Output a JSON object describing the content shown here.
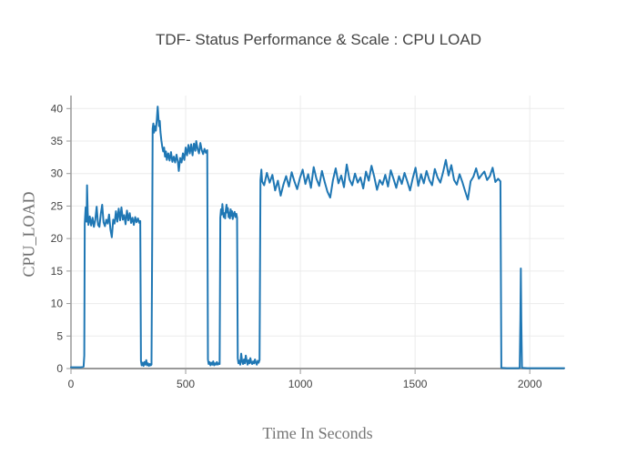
{
  "chart_data": {
    "type": "line",
    "title": "TDF- Status Performance & Scale : CPU LOAD",
    "xlabel": "Time In Seconds",
    "ylabel": "CPU_LOAD",
    "xlim": [
      0,
      2150
    ],
    "ylim": [
      0,
      42
    ],
    "xticks": [
      0,
      500,
      1000,
      1500,
      2000
    ],
    "yticks": [
      0,
      5,
      10,
      15,
      20,
      25,
      30,
      35,
      40
    ],
    "grid": true,
    "legend": false,
    "colors": {
      "line": "#1f77b4",
      "grid": "#ebebeb",
      "axis": "#999999",
      "tick_label": "#444444",
      "title": "#444444"
    },
    "series": [
      {
        "name": "CPU_LOAD",
        "points": [
          [
            0,
            0.2
          ],
          [
            15,
            0.2
          ],
          [
            30,
            0.2
          ],
          [
            45,
            0.2
          ],
          [
            55,
            0.3
          ],
          [
            58,
            2.0
          ],
          [
            60,
            22.3
          ],
          [
            64,
            24.8
          ],
          [
            68,
            22.6
          ],
          [
            70,
            28.2
          ],
          [
            73,
            24.0
          ],
          [
            76,
            22.1
          ],
          [
            82,
            23.4
          ],
          [
            88,
            22.0
          ],
          [
            94,
            23.2
          ],
          [
            100,
            21.8
          ],
          [
            106,
            22.9
          ],
          [
            112,
            24.9
          ],
          [
            118,
            22.1
          ],
          [
            124,
            21.8
          ],
          [
            130,
            23.8
          ],
          [
            136,
            25.2
          ],
          [
            142,
            22.5
          ],
          [
            148,
            21.9
          ],
          [
            154,
            22.9
          ],
          [
            160,
            22.3
          ],
          [
            166,
            23.7
          ],
          [
            172,
            21.4
          ],
          [
            178,
            20.2
          ],
          [
            184,
            22.9
          ],
          [
            190,
            22.3
          ],
          [
            196,
            24.2
          ],
          [
            202,
            22.6
          ],
          [
            208,
            24.6
          ],
          [
            214,
            22.8
          ],
          [
            220,
            24.8
          ],
          [
            226,
            22.9
          ],
          [
            232,
            23.6
          ],
          [
            238,
            22.2
          ],
          [
            244,
            24.3
          ],
          [
            250,
            22.8
          ],
          [
            256,
            23.9
          ],
          [
            262,
            22.4
          ],
          [
            268,
            23.2
          ],
          [
            274,
            22.1
          ],
          [
            280,
            23.3
          ],
          [
            286,
            22.5
          ],
          [
            292,
            23.1
          ],
          [
            298,
            22.4
          ],
          [
            302,
            22.7
          ],
          [
            305,
            1.2
          ],
          [
            308,
            0.5
          ],
          [
            312,
            0.9
          ],
          [
            316,
            0.4
          ],
          [
            320,
            1.0
          ],
          [
            324,
            0.6
          ],
          [
            328,
            1.3
          ],
          [
            332,
            0.5
          ],
          [
            336,
            0.8
          ],
          [
            340,
            0.4
          ],
          [
            344,
            0.7
          ],
          [
            348,
            0.5
          ],
          [
            351,
            0.6
          ],
          [
            354,
            20.0
          ],
          [
            356,
            36.9
          ],
          [
            359,
            37.7
          ],
          [
            362,
            36.3
          ],
          [
            366,
            37.3
          ],
          [
            370,
            36.6
          ],
          [
            374,
            38.2
          ],
          [
            378,
            40.3
          ],
          [
            381,
            38.7
          ],
          [
            384,
            37.3
          ],
          [
            387,
            38.1
          ],
          [
            390,
            36.4
          ],
          [
            394,
            35.1
          ],
          [
            398,
            34.1
          ],
          [
            402,
            33.4
          ],
          [
            406,
            34.0
          ],
          [
            410,
            32.6
          ],
          [
            414,
            33.4
          ],
          [
            418,
            32.1
          ],
          [
            424,
            33.1
          ],
          [
            430,
            32.0
          ],
          [
            436,
            33.3
          ],
          [
            442,
            31.8
          ],
          [
            448,
            32.6
          ],
          [
            454,
            31.7
          ],
          [
            460,
            32.9
          ],
          [
            466,
            31.8
          ],
          [
            470,
            30.4
          ],
          [
            476,
            32.4
          ],
          [
            482,
            31.7
          ],
          [
            488,
            33.1
          ],
          [
            494,
            32.1
          ],
          [
            500,
            34.0
          ],
          [
            506,
            32.8
          ],
          [
            512,
            34.4
          ],
          [
            518,
            33.1
          ],
          [
            524,
            34.5
          ],
          [
            530,
            32.8
          ],
          [
            536,
            34.6
          ],
          [
            542,
            33.5
          ],
          [
            546,
            35.0
          ],
          [
            552,
            33.8
          ],
          [
            558,
            33.1
          ],
          [
            564,
            34.7
          ],
          [
            570,
            33.6
          ],
          [
            576,
            33.0
          ],
          [
            582,
            33.8
          ],
          [
            588,
            33.2
          ],
          [
            594,
            33.6
          ],
          [
            597,
            1.4
          ],
          [
            600,
            0.7
          ],
          [
            604,
            1.0
          ],
          [
            608,
            0.5
          ],
          [
            612,
            0.9
          ],
          [
            616,
            0.6
          ],
          [
            620,
            1.1
          ],
          [
            624,
            0.5
          ],
          [
            628,
            0.8
          ],
          [
            632,
            0.6
          ],
          [
            636,
            1.0
          ],
          [
            640,
            0.6
          ],
          [
            644,
            0.8
          ],
          [
            648,
            0.7
          ],
          [
            651,
            23.2
          ],
          [
            654,
            24.5
          ],
          [
            657,
            23.7
          ],
          [
            660,
            25.3
          ],
          [
            663,
            24.1
          ],
          [
            666,
            23.3
          ],
          [
            669,
            23.9
          ],
          [
            672,
            23.1
          ],
          [
            675,
            24.4
          ],
          [
            678,
            25.2
          ],
          [
            681,
            24.0
          ],
          [
            684,
            24.7
          ],
          [
            687,
            23.3
          ],
          [
            690,
            24.0
          ],
          [
            693,
            23.1
          ],
          [
            696,
            24.5
          ],
          [
            699,
            23.5
          ],
          [
            702,
            24.2
          ],
          [
            705,
            23.0
          ],
          [
            709,
            23.7
          ],
          [
            713,
            24.1
          ],
          [
            717,
            23.3
          ],
          [
            721,
            23.8
          ],
          [
            724,
            23.2
          ],
          [
            727,
            1.6
          ],
          [
            730,
            0.8
          ],
          [
            734,
            1.2
          ],
          [
            738,
            0.6
          ],
          [
            742,
            2.3
          ],
          [
            746,
            1.1
          ],
          [
            750,
            0.7
          ],
          [
            754,
            1.4
          ],
          [
            758,
            0.8
          ],
          [
            762,
            2.0
          ],
          [
            766,
            1.2
          ],
          [
            770,
            0.6
          ],
          [
            774,
            1.3
          ],
          [
            778,
            0.8
          ],
          [
            782,
            1.6
          ],
          [
            786,
            0.9
          ],
          [
            790,
            0.7
          ],
          [
            794,
            1.1
          ],
          [
            798,
            0.8
          ],
          [
            802,
            1.4
          ],
          [
            806,
            0.9
          ],
          [
            810,
            0.6
          ],
          [
            814,
            1.2
          ],
          [
            818,
            0.9
          ],
          [
            822,
            1.3
          ],
          [
            826,
            29.0
          ],
          [
            830,
            30.6
          ],
          [
            833,
            28.8
          ],
          [
            842,
            28.2
          ],
          [
            854,
            30.1
          ],
          [
            866,
            28.6
          ],
          [
            878,
            29.8
          ],
          [
            890,
            27.4
          ],
          [
            902,
            28.9
          ],
          [
            914,
            26.6
          ],
          [
            926,
            28.3
          ],
          [
            938,
            29.6
          ],
          [
            950,
            28.0
          ],
          [
            962,
            30.2
          ],
          [
            974,
            28.8
          ],
          [
            986,
            27.6
          ],
          [
            998,
            29.3
          ],
          [
            1010,
            30.6
          ],
          [
            1022,
            28.4
          ],
          [
            1034,
            29.9
          ],
          [
            1046,
            27.8
          ],
          [
            1058,
            31.0
          ],
          [
            1070,
            29.2
          ],
          [
            1082,
            28.1
          ],
          [
            1094,
            30.4
          ],
          [
            1106,
            28.7
          ],
          [
            1118,
            27.2
          ],
          [
            1130,
            26.3
          ],
          [
            1142,
            29.0
          ],
          [
            1154,
            30.8
          ],
          [
            1166,
            28.5
          ],
          [
            1178,
            29.7
          ],
          [
            1190,
            27.9
          ],
          [
            1202,
            31.4
          ],
          [
            1214,
            29.1
          ],
          [
            1226,
            28.2
          ],
          [
            1238,
            30.0
          ],
          [
            1250,
            28.6
          ],
          [
            1262,
            29.4
          ],
          [
            1274,
            27.7
          ],
          [
            1286,
            30.3
          ],
          [
            1298,
            28.9
          ],
          [
            1310,
            31.2
          ],
          [
            1322,
            29.5
          ],
          [
            1334,
            27.5
          ],
          [
            1346,
            29.0
          ],
          [
            1358,
            28.3
          ],
          [
            1370,
            29.8
          ],
          [
            1382,
            28.0
          ],
          [
            1394,
            30.5
          ],
          [
            1406,
            29.2
          ],
          [
            1418,
            27.8
          ],
          [
            1430,
            29.6
          ],
          [
            1442,
            28.4
          ],
          [
            1454,
            30.1
          ],
          [
            1466,
            28.8
          ],
          [
            1478,
            27.4
          ],
          [
            1490,
            29.3
          ],
          [
            1502,
            30.9
          ],
          [
            1514,
            28.1
          ],
          [
            1526,
            29.9
          ],
          [
            1538,
            28.5
          ],
          [
            1550,
            30.4
          ],
          [
            1562,
            29.0
          ],
          [
            1574,
            28.2
          ],
          [
            1586,
            30.7
          ],
          [
            1598,
            29.4
          ],
          [
            1610,
            28.6
          ],
          [
            1622,
            30.2
          ],
          [
            1634,
            32.1
          ],
          [
            1646,
            29.7
          ],
          [
            1658,
            31.3
          ],
          [
            1670,
            29.0
          ],
          [
            1682,
            28.3
          ],
          [
            1694,
            29.9
          ],
          [
            1706,
            28.7
          ],
          [
            1718,
            27.3
          ],
          [
            1730,
            26.0
          ],
          [
            1742,
            28.8
          ],
          [
            1754,
            29.5
          ],
          [
            1766,
            30.8
          ],
          [
            1778,
            29.2
          ],
          [
            1790,
            29.8
          ],
          [
            1802,
            30.3
          ],
          [
            1814,
            29.0
          ],
          [
            1826,
            29.6
          ],
          [
            1838,
            30.9
          ],
          [
            1850,
            28.7
          ],
          [
            1862,
            29.2
          ],
          [
            1872,
            28.8
          ],
          [
            1876,
            0.1
          ],
          [
            1900,
            0.05
          ],
          [
            1925,
            0.05
          ],
          [
            1950,
            0.05
          ],
          [
            1956,
            0.1
          ],
          [
            1959,
            7.5
          ],
          [
            1961,
            15.4
          ],
          [
            1963,
            7.5
          ],
          [
            1966,
            0.1
          ],
          [
            1990,
            0.05
          ],
          [
            2020,
            0.05
          ],
          [
            2060,
            0.05
          ],
          [
            2100,
            0.05
          ],
          [
            2150,
            0.05
          ]
        ]
      }
    ]
  }
}
